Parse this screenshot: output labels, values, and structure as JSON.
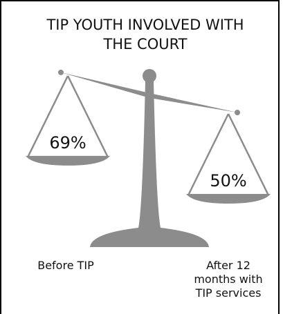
{
  "chart_data": {
    "type": "scale",
    "title": "TIP YOUTH INVOLVED WITH THE COURT",
    "categories": [
      "Before TIP",
      "After 12 months with TIP services"
    ],
    "values": [
      69,
      50
    ],
    "value_labels": [
      "69%",
      "50%"
    ],
    "color": "#8c8c8c"
  }
}
